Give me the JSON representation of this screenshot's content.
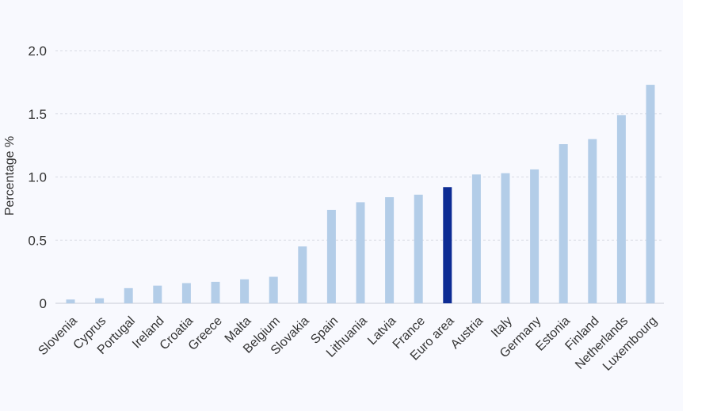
{
  "chart_data": {
    "type": "bar",
    "title": "",
    "xlabel": "",
    "ylabel": "Percentage %",
    "ylim": [
      0,
      2.0
    ],
    "yticks": [
      "0",
      "0.5",
      "1.0",
      "1.5",
      "2.0"
    ],
    "grid": true,
    "categories": [
      "Slovenia",
      "Cyprus",
      "Portugal",
      "Ireland",
      "Croatia",
      "Greece",
      "Malta",
      "Belgium",
      "Slovakia",
      "Spain",
      "Lithuania",
      "Latvia",
      "France",
      "Euro area",
      "Austria",
      "Italy",
      "Germany",
      "Estonia",
      "Finland",
      "Netherlands",
      "Luxembourg"
    ],
    "values": [
      0.03,
      0.04,
      0.12,
      0.14,
      0.16,
      0.17,
      0.19,
      0.21,
      0.45,
      0.74,
      0.8,
      0.84,
      0.86,
      0.92,
      1.02,
      1.03,
      1.06,
      1.26,
      1.3,
      1.49,
      1.73
    ],
    "highlight": "Euro area",
    "colors": {
      "bar": "#b3cde8",
      "highlight": "#0d2c94",
      "grid": "#d8dbe4",
      "text": "#333333"
    }
  }
}
